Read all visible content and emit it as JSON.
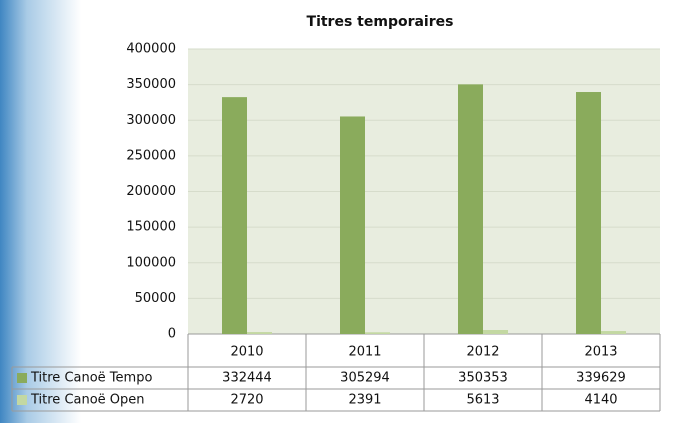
{
  "chart_data": {
    "type": "bar",
    "title": "Titres temporaires",
    "categories": [
      "2010",
      "2011",
      "2012",
      "2013"
    ],
    "series": [
      {
        "name": "Titre Canoë Tempo",
        "color": "#8aab5c",
        "values": [
          332444,
          305294,
          350353,
          339629
        ]
      },
      {
        "name": "Titre Canoë Open",
        "color": "#c3d8a2",
        "values": [
          2720,
          2391,
          5613,
          4140
        ]
      }
    ],
    "ylim": [
      0,
      400000
    ],
    "yticks": [
      0,
      50000,
      100000,
      150000,
      200000,
      250000,
      300000,
      350000,
      400000
    ],
    "grid": true
  }
}
